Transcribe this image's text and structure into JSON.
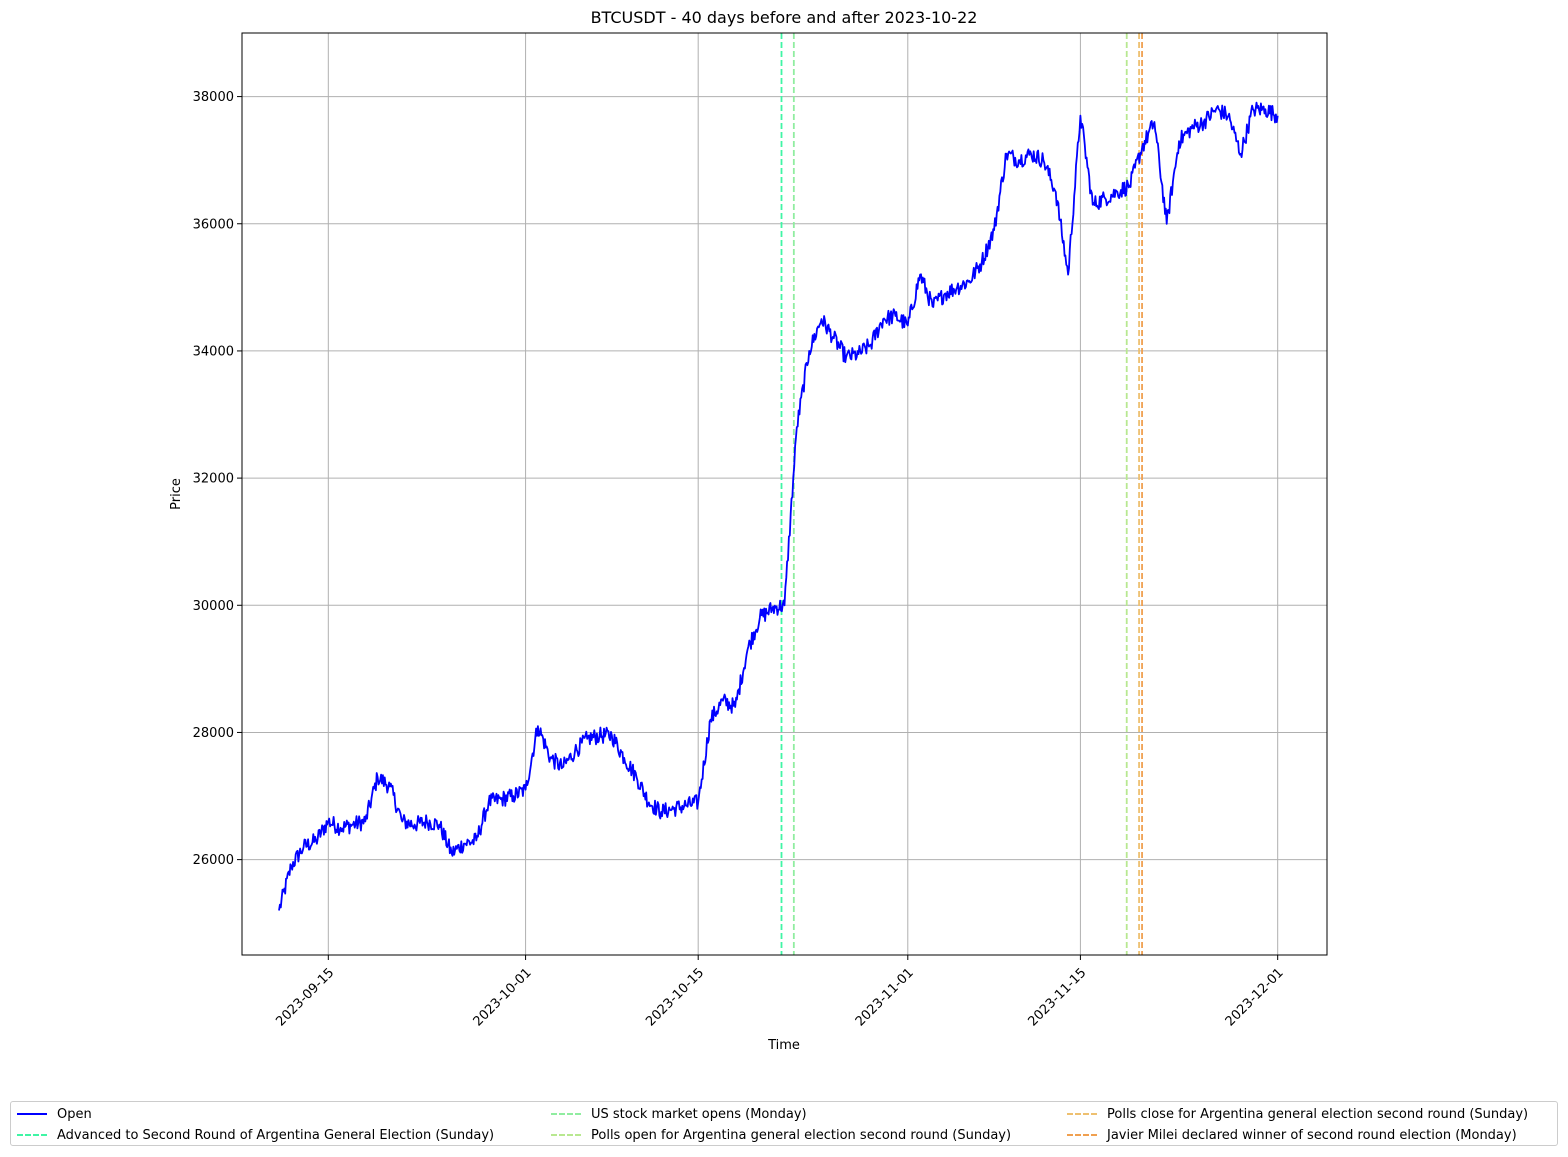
{
  "chart_data": {
    "type": "line",
    "title": "BTCUSDT - 40 days before and after 2023-10-22",
    "xlabel": "Time",
    "ylabel": "Price",
    "x_range": [
      "2023-09-08",
      "2023-12-05"
    ],
    "ylim": [
      24500,
      39000
    ],
    "x_ticks": [
      "2023-09-15",
      "2023-10-01",
      "2023-10-15",
      "2023-11-01",
      "2023-11-15",
      "2023-12-01"
    ],
    "y_ticks": [
      26000,
      28000,
      30000,
      32000,
      34000,
      36000,
      38000
    ],
    "grid": true,
    "legend_position": "bottom",
    "series": [
      {
        "name": "Open",
        "color": "#0000ff",
        "x": [
          "2023-09-11",
          "2023-09-12",
          "2023-09-13",
          "2023-09-14",
          "2023-09-15",
          "2023-09-16",
          "2023-09-17",
          "2023-09-18",
          "2023-09-19",
          "2023-09-20",
          "2023-09-21",
          "2023-09-22",
          "2023-09-23",
          "2023-09-24",
          "2023-09-25",
          "2023-09-26",
          "2023-09-27",
          "2023-09-28",
          "2023-09-29",
          "2023-09-30",
          "2023-10-01",
          "2023-10-02",
          "2023-10-03",
          "2023-10-04",
          "2023-10-05",
          "2023-10-06",
          "2023-10-07",
          "2023-10-08",
          "2023-10-09",
          "2023-10-10",
          "2023-10-11",
          "2023-10-12",
          "2023-10-13",
          "2023-10-14",
          "2023-10-15",
          "2023-10-16",
          "2023-10-17",
          "2023-10-18",
          "2023-10-19",
          "2023-10-20",
          "2023-10-21",
          "2023-10-22",
          "2023-10-23",
          "2023-10-24",
          "2023-10-25",
          "2023-10-26",
          "2023-10-27",
          "2023-10-28",
          "2023-10-29",
          "2023-10-30",
          "2023-10-31",
          "2023-11-01",
          "2023-11-02",
          "2023-11-03",
          "2023-11-04",
          "2023-11-05",
          "2023-11-06",
          "2023-11-07",
          "2023-11-08",
          "2023-11-09",
          "2023-11-10",
          "2023-11-11",
          "2023-11-12",
          "2023-11-13",
          "2023-11-14",
          "2023-11-15",
          "2023-11-16",
          "2023-11-17",
          "2023-11-18",
          "2023-11-19",
          "2023-11-20",
          "2023-11-21",
          "2023-11-22",
          "2023-11-23",
          "2023-11-24",
          "2023-11-25",
          "2023-11-26",
          "2023-11-27",
          "2023-11-28",
          "2023-11-29",
          "2023-11-30",
          "2023-12-01"
        ],
        "values": [
          25200,
          25900,
          26200,
          26300,
          26600,
          26500,
          26550,
          26600,
          27300,
          27150,
          26600,
          26550,
          26600,
          26550,
          26100,
          26250,
          26300,
          26900,
          26950,
          27000,
          27100,
          28100,
          27600,
          27450,
          27700,
          27900,
          27950,
          27950,
          27600,
          27300,
          26900,
          26750,
          26800,
          26850,
          26900,
          28200,
          28500,
          28400,
          29300,
          29800,
          29950,
          30000,
          32800,
          34000,
          34500,
          34200,
          33900,
          33950,
          34100,
          34500,
          34550,
          34400,
          35200,
          34700,
          34900,
          35000,
          35100,
          35400,
          35900,
          37100,
          37000,
          37100,
          37000,
          36500,
          35200,
          37700,
          36300,
          36400,
          36500,
          36600,
          37200,
          37600,
          36000,
          37300,
          37500,
          37600,
          37800,
          37700,
          37100,
          37800,
          37800,
          37700
        ]
      }
    ],
    "vlines": [
      {
        "name": "Advanced to Second Round of Argentina General Election (Sunday)",
        "x": "2023-10-22",
        "color": "#3ff5a5"
      },
      {
        "name": "US stock market opens (Monday)",
        "x": "2023-10-23",
        "color": "#90eda0"
      },
      {
        "name": "Polls open for Argentina general election second round (Sunday)",
        "x": "2023-11-19",
        "color": "#b8e890"
      },
      {
        "name": "Polls close for Argentina general election second round (Sunday)",
        "x": "2023-11-20",
        "color": "#eec070"
      },
      {
        "name": "Javier Milei declared winner of second round election (Monday)",
        "x": "2023-11-20",
        "color": "#f0a050"
      }
    ]
  }
}
